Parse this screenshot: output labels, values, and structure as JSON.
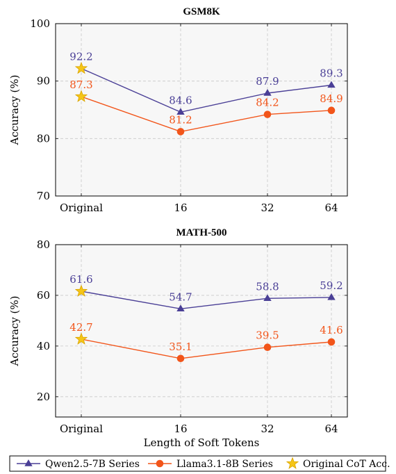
{
  "chart_data": [
    {
      "type": "line",
      "title": "GSM8K",
      "xlabel": "",
      "ylabel": "Accuracy (%)",
      "categories": [
        "Original",
        "16",
        "32",
        "64"
      ],
      "ylim": [
        70,
        100
      ],
      "yticks": [
        "70",
        "80",
        "90",
        "100"
      ],
      "grid": true,
      "series": [
        {
          "name": "Qwen2.5-7B Series",
          "values": [
            92.2,
            84.6,
            87.9,
            89.3
          ],
          "labels": [
            "92.2",
            "84.6",
            "87.9",
            "89.3"
          ],
          "color": "#4a3f96",
          "marker": "triangle"
        },
        {
          "name": "Llama3.1-8B Series",
          "values": [
            87.3,
            81.2,
            84.2,
            84.9
          ],
          "labels": [
            "87.3",
            "81.2",
            "84.2",
            "84.9"
          ],
          "color": "#f2551a",
          "marker": "circle"
        }
      ],
      "original_cot": [
        92.2,
        87.3
      ]
    },
    {
      "type": "line",
      "title": "MATH-500",
      "xlabel": "Length of Soft Tokens",
      "ylabel": "Accuracy (%)",
      "categories": [
        "Original",
        "16",
        "32",
        "64"
      ],
      "ylim": [
        12,
        80
      ],
      "yticks": [
        "20",
        "40",
        "60",
        "80"
      ],
      "grid": true,
      "series": [
        {
          "name": "Qwen2.5-7B Series",
          "values": [
            61.6,
            54.7,
            58.8,
            59.2
          ],
          "labels": [
            "61.6",
            "54.7",
            "58.8",
            "59.2"
          ],
          "color": "#4a3f96",
          "marker": "triangle"
        },
        {
          "name": "Llama3.1-8B Series",
          "values": [
            42.7,
            35.1,
            39.5,
            41.6
          ],
          "labels": [
            "42.7",
            "35.1",
            "39.5",
            "41.6"
          ],
          "color": "#f2551a",
          "marker": "circle"
        }
      ],
      "original_cot": [
        61.6,
        42.7
      ]
    }
  ],
  "legend": {
    "position": "bottom",
    "items": [
      {
        "label": "Qwen2.5-7B Series",
        "color": "#4a3f96",
        "marker": "triangle"
      },
      {
        "label": "Llama3.1-8B Series",
        "color": "#f2551a",
        "marker": "circle"
      },
      {
        "label": "Original CoT Acc.",
        "color": "#f5c518",
        "marker": "star"
      }
    ]
  }
}
